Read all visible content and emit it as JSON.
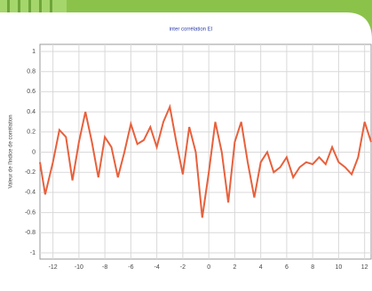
{
  "chart_data": {
    "type": "line",
    "title": "inter corrélation EI",
    "y_label": "Valeur de l'indice de corrélation",
    "x": [
      -13,
      -12.6,
      -12,
      -11.5,
      -11,
      -10.5,
      -10,
      -9.5,
      -9,
      -8.5,
      -8,
      -7.5,
      -7,
      -6.5,
      -6,
      -5.5,
      -5,
      -4.5,
      -4,
      -3.5,
      -3,
      -2.5,
      -2,
      -1.5,
      -1,
      -0.5,
      0,
      0.5,
      1,
      1.5,
      2,
      2.5,
      3,
      3.5,
      4,
      4.5,
      5,
      5.5,
      6,
      6.5,
      7,
      7.5,
      8,
      8.5,
      9,
      9.5,
      10,
      10.5,
      11,
      11.5,
      12,
      12.5
    ],
    "series": [
      {
        "color": "#e8603c",
        "values": [
          -0.1,
          -0.42,
          -0.1,
          0.22,
          0.15,
          -0.28,
          0.1,
          0.4,
          0.1,
          -0.25,
          0.15,
          0.05,
          -0.25,
          0.0,
          0.28,
          0.08,
          0.12,
          0.25,
          0.05,
          0.3,
          0.45,
          0.1,
          -0.22,
          0.25,
          0.0,
          -0.65,
          -0.2,
          0.3,
          0.0,
          -0.5,
          0.1,
          0.3,
          -0.1,
          -0.45,
          -0.1,
          0.0,
          -0.2,
          -0.15,
          -0.05,
          -0.25,
          -0.15,
          -0.1,
          -0.12,
          -0.05,
          -0.12,
          0.05,
          -0.1,
          -0.15,
          -0.22,
          -0.05,
          0.3,
          0.1
        ]
      }
    ],
    "xlim": [
      -13,
      12.5
    ],
    "xticks": [
      -12,
      -10,
      -8,
      -6,
      -4,
      -2,
      0,
      2,
      4,
      6,
      8,
      10,
      12
    ],
    "ylim": [
      -1,
      1
    ],
    "yticks": [
      -1,
      -0.8,
      -0.6,
      -0.4,
      -0.2,
      0,
      0.2,
      0.4,
      0.6,
      0.8,
      1
    ],
    "grid": true
  }
}
